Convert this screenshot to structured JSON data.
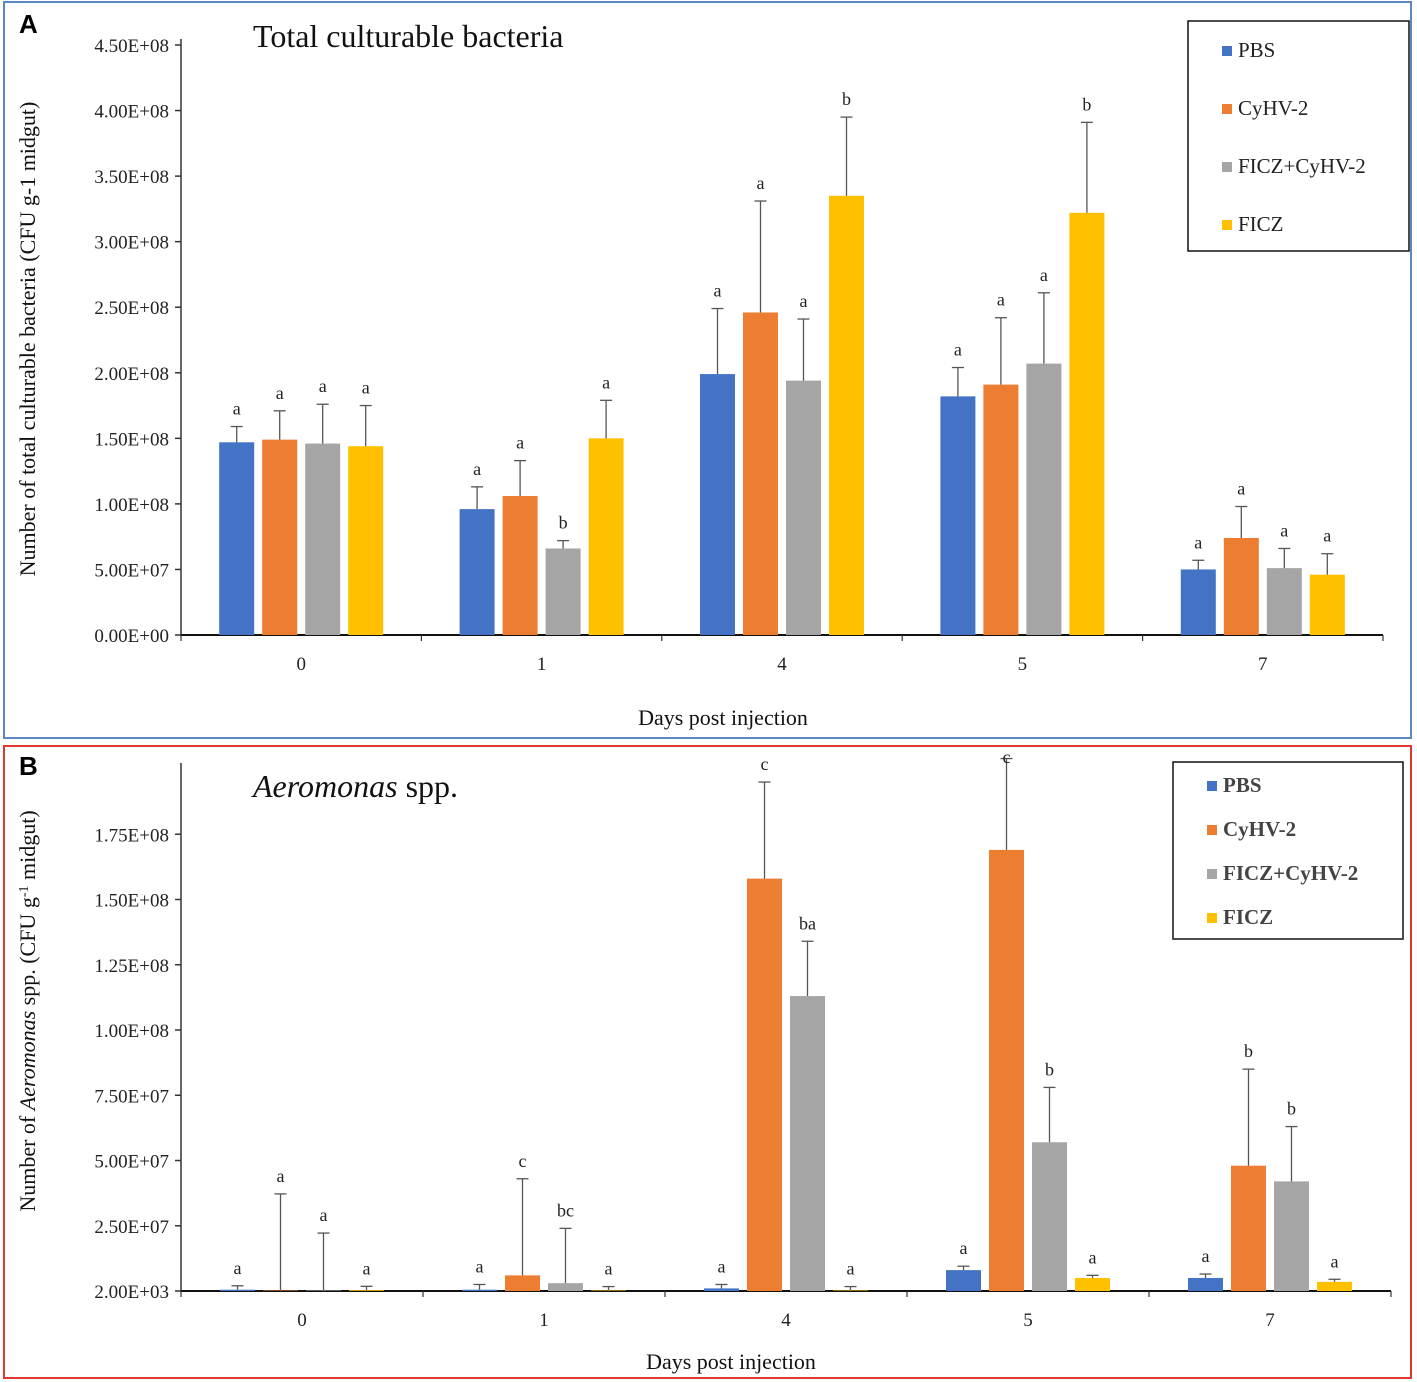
{
  "legend": [
    "PBS",
    "CyHV-2",
    "FICZ+CyHV-2",
    "FICZ"
  ],
  "colors": [
    "#4472C4",
    "#ED7D31",
    "#A5A5A5",
    "#FFC000"
  ],
  "chart_data": [
    {
      "type": "bar",
      "panel": "A",
      "title": "Total culturable bacteria",
      "xlabel": "Days post injection",
      "ylabel": "Number of total culturable bacteria  (CFU g-1 midgut)",
      "ylim": [
        0,
        450000000
      ],
      "ytick_values": [
        0,
        50000000,
        100000000,
        150000000,
        200000000,
        250000000,
        300000000,
        350000000,
        400000000,
        450000000
      ],
      "yticks": [
        "0.00E+00",
        "5.00E+07",
        "1.00E+08",
        "1.50E+08",
        "2.00E+08",
        "2.50E+08",
        "3.00E+08",
        "3.50E+08",
        "4.00E+08",
        "4.50E+08"
      ],
      "categories": [
        "0",
        "1",
        "4",
        "5",
        "7"
      ],
      "series": [
        {
          "name": "PBS",
          "values": [
            147000000,
            96000000,
            199000000,
            182000000,
            50000000
          ],
          "errors": [
            12000000,
            17000000,
            50000000,
            22000000,
            7000000
          ],
          "letters": [
            "a",
            "a",
            "a",
            "a",
            "a"
          ]
        },
        {
          "name": "CyHV-2",
          "values": [
            149000000,
            106000000,
            246000000,
            191000000,
            74000000
          ],
          "errors": [
            22000000,
            27000000,
            85000000,
            51000000,
            24000000
          ],
          "letters": [
            "a",
            "a",
            "a",
            "a",
            "a"
          ]
        },
        {
          "name": "FICZ+CyHV-2",
          "values": [
            146000000,
            66000000,
            194000000,
            207000000,
            51000000
          ],
          "errors": [
            30000000,
            6000000,
            47000000,
            54000000,
            15000000
          ],
          "letters": [
            "a",
            "b",
            "a",
            "a",
            "a"
          ]
        },
        {
          "name": "FICZ",
          "values": [
            144000000,
            150000000,
            335000000,
            322000000,
            46000000
          ],
          "errors": [
            31000000,
            29000000,
            60000000,
            69000000,
            16000000
          ],
          "letters": [
            "a",
            "a",
            "b",
            "b",
            "a"
          ]
        }
      ]
    },
    {
      "type": "bar",
      "panel": "B",
      "title_italic": "Aeromonas",
      "title_rest": " spp.",
      "xlabel": "Days post injection",
      "ylabel_pre": "Number of ",
      "ylabel_italic": "Aeromonas",
      "ylabel_mid": " spp. (CFU g",
      "ylabel_sup": "-1",
      "ylabel_post": " midgut)",
      "ylim": [
        2000,
        200000000
      ],
      "ytick_values": [
        2000,
        25000000,
        50000000,
        75000000,
        100000000,
        125000000,
        150000000,
        175000000
      ],
      "yticks": [
        "2.00E+03",
        "2.50E+07",
        "5.00E+07",
        "7.50E+07",
        "1.00E+08",
        "1.25E+08",
        "1.50E+08",
        "1.75E+08"
      ],
      "categories": [
        "0",
        "1",
        "4",
        "5",
        "7"
      ],
      "series": [
        {
          "name": "PBS",
          "values": [
            500000,
            500000,
            1000000,
            8000000,
            5000000
          ],
          "errors": [
            1500000,
            2000000,
            1500000,
            1500000,
            1500000
          ],
          "letters": [
            "a",
            "a",
            "a",
            "a",
            "a"
          ]
        },
        {
          "name": "CyHV-2",
          "values": [
            200000,
            6000000,
            158000000,
            169000000,
            48000000
          ],
          "errors": [
            37000000,
            37000000,
            37000000,
            36000000,
            37000000
          ],
          "letters": [
            "a",
            "c",
            "c",
            "c",
            "b"
          ]
        },
        {
          "name": "FICZ+CyHV-2",
          "values": [
            200000,
            3000000,
            113000000,
            57000000,
            42000000
          ],
          "errors": [
            22000000,
            21000000,
            21000000,
            21000000,
            21000000
          ],
          "letters": [
            "a",
            "bc",
            "ba",
            "b",
            "b"
          ]
        },
        {
          "name": "FICZ",
          "values": [
            300000,
            200000,
            200000,
            5000000,
            3500000
          ],
          "errors": [
            1500000,
            1500000,
            1500000,
            1000000,
            1000000
          ],
          "letters": [
            "a",
            "a",
            "a",
            "a",
            "a"
          ]
        }
      ]
    }
  ],
  "panel_labels": [
    "A",
    "B"
  ]
}
